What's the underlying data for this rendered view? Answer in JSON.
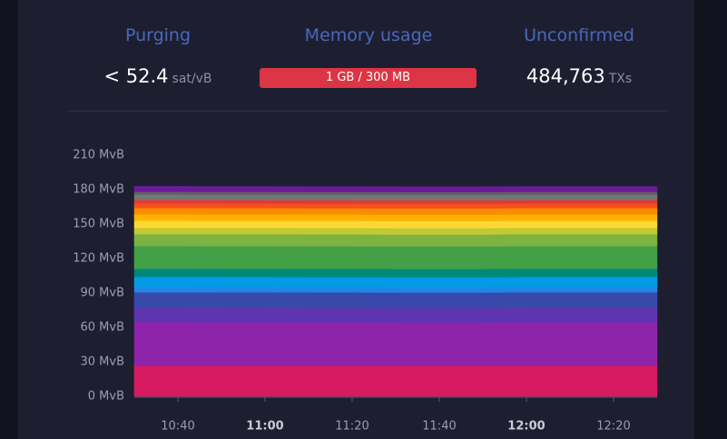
{
  "stats": [
    {
      "label": "Purging",
      "value": "< 52.4",
      "unit": "sat/vB"
    },
    {
      "label": "Memory usage",
      "value": "1 GB / 300 MB"
    },
    {
      "label": "Unconfirmed",
      "value": "484,763",
      "unit": "TXs"
    }
  ],
  "chart_data": {
    "type": "stacked-area",
    "categories": [
      null,
      "10:40",
      null,
      "11:00",
      null,
      "11:20",
      null,
      "11:40",
      null,
      "12:00",
      null,
      "12:20",
      null
    ],
    "ylim": [
      0,
      210
    ],
    "yticks": [
      {
        "value": 0,
        "label": "0 MvB"
      },
      {
        "value": 30,
        "label": "30 MvB"
      },
      {
        "value": 60,
        "label": "60 MvB"
      },
      {
        "value": 90,
        "label": "90 MvB"
      },
      {
        "value": 120,
        "label": "120 MvB"
      },
      {
        "value": 150,
        "label": "150 MvB"
      },
      {
        "value": 180,
        "label": "180 MvB"
      },
      {
        "value": 210,
        "label": "210 MvB"
      }
    ],
    "grid": false,
    "series": [
      {
        "color": "#d81b60",
        "values": [
          26.8,
          26.8,
          26.8,
          26.8,
          26.8,
          26.8,
          26.8,
          26.8,
          26.8,
          26.8,
          26.8,
          26.8,
          26.8
        ]
      },
      {
        "color": "#8e24aa",
        "values": [
          37.9,
          37.9,
          37.8,
          37.8,
          37.7,
          37.7,
          37.6,
          37.6,
          37.6,
          37.8,
          37.8,
          37.8,
          37.8
        ]
      },
      {
        "color": "#5e35b1",
        "values": [
          12.6,
          12.6,
          12.6,
          12.6,
          12.6,
          12.6,
          12.6,
          12.6,
          12.6,
          12.6,
          12.6,
          12.6,
          12.6
        ]
      },
      {
        "color": "#3949ab",
        "values": [
          13.4,
          13.4,
          13.4,
          13.4,
          13.4,
          13.4,
          13.4,
          13.4,
          13.4,
          13.4,
          13.4,
          13.4,
          13.4
        ]
      },
      {
        "color": "#1e88e5",
        "values": [
          4.7,
          4.7,
          4.7,
          4.7,
          4.7,
          4.7,
          4.7,
          4.7,
          4.7,
          4.7,
          4.7,
          4.7,
          4.7
        ]
      },
      {
        "color": "#039be5",
        "values": [
          8.7,
          8.7,
          8.7,
          8.7,
          8.7,
          8.7,
          8.7,
          8.7,
          8.7,
          8.7,
          8.7,
          8.7,
          8.7
        ]
      },
      {
        "color": "#00897b",
        "values": [
          7.1,
          7.1,
          7.1,
          7.1,
          7.1,
          7.1,
          7.1,
          7.1,
          7.1,
          7.1,
          7.1,
          7.1,
          7.1
        ]
      },
      {
        "color": "#43a047",
        "values": [
          19.7,
          19.7,
          19.7,
          19.7,
          19.7,
          19.7,
          19.7,
          19.7,
          19.7,
          19.7,
          19.7,
          19.7,
          19.7
        ]
      },
      {
        "color": "#7cb342",
        "values": [
          10.3,
          10.3,
          10.3,
          10.3,
          10.3,
          10.3,
          10.3,
          10.3,
          10.3,
          10.3,
          10.3,
          10.3,
          10.3
        ]
      },
      {
        "color": "#c0ca33",
        "values": [
          5.5,
          5.5,
          5.5,
          5.5,
          5.5,
          5.5,
          5.5,
          5.5,
          5.5,
          5.5,
          5.5,
          5.5,
          5.5
        ]
      },
      {
        "color": "#fdd835",
        "values": [
          6.3,
          6.3,
          6.3,
          6.3,
          6.3,
          6.3,
          6.3,
          6.3,
          6.3,
          6.3,
          6.3,
          6.3,
          6.3
        ]
      },
      {
        "color": "#ffb300",
        "values": [
          5.5,
          5.5,
          5.5,
          5.5,
          5.5,
          5.5,
          5.5,
          5.5,
          5.5,
          5.5,
          5.5,
          5.5,
          5.5
        ]
      },
      {
        "color": "#fb8c00",
        "values": [
          5.5,
          5.5,
          5.5,
          5.5,
          5.5,
          5.5,
          5.5,
          5.5,
          5.5,
          5.5,
          5.5,
          5.5,
          5.5
        ]
      },
      {
        "color": "#f4511e",
        "values": [
          4,
          4,
          4,
          4,
          4,
          4,
          4,
          4,
          4,
          4,
          4,
          4,
          4
        ]
      },
      {
        "color": "#e53935",
        "values": [
          3,
          3,
          3,
          3,
          3,
          3,
          3,
          3,
          3,
          3,
          3,
          3,
          3
        ]
      },
      {
        "color": "#757575",
        "values": [
          4.7,
          4.7,
          4.7,
          4.7,
          4.7,
          4.7,
          4.7,
          4.7,
          4.7,
          4.7,
          4.7,
          4.7,
          4.7
        ]
      },
      {
        "color": "#616161",
        "values": [
          2.4,
          2.4,
          2.4,
          2.4,
          2.4,
          2.4,
          2.4,
          2.4,
          2.4,
          2.4,
          2.4,
          2.4,
          2.4
        ]
      },
      {
        "color": "#6a1b9a",
        "values": [
          4.7,
          4.7,
          4.7,
          4.7,
          4.7,
          4.7,
          4.7,
          4.7,
          4.7,
          4.7,
          4.7,
          4.7,
          4.7
        ]
      }
    ]
  }
}
